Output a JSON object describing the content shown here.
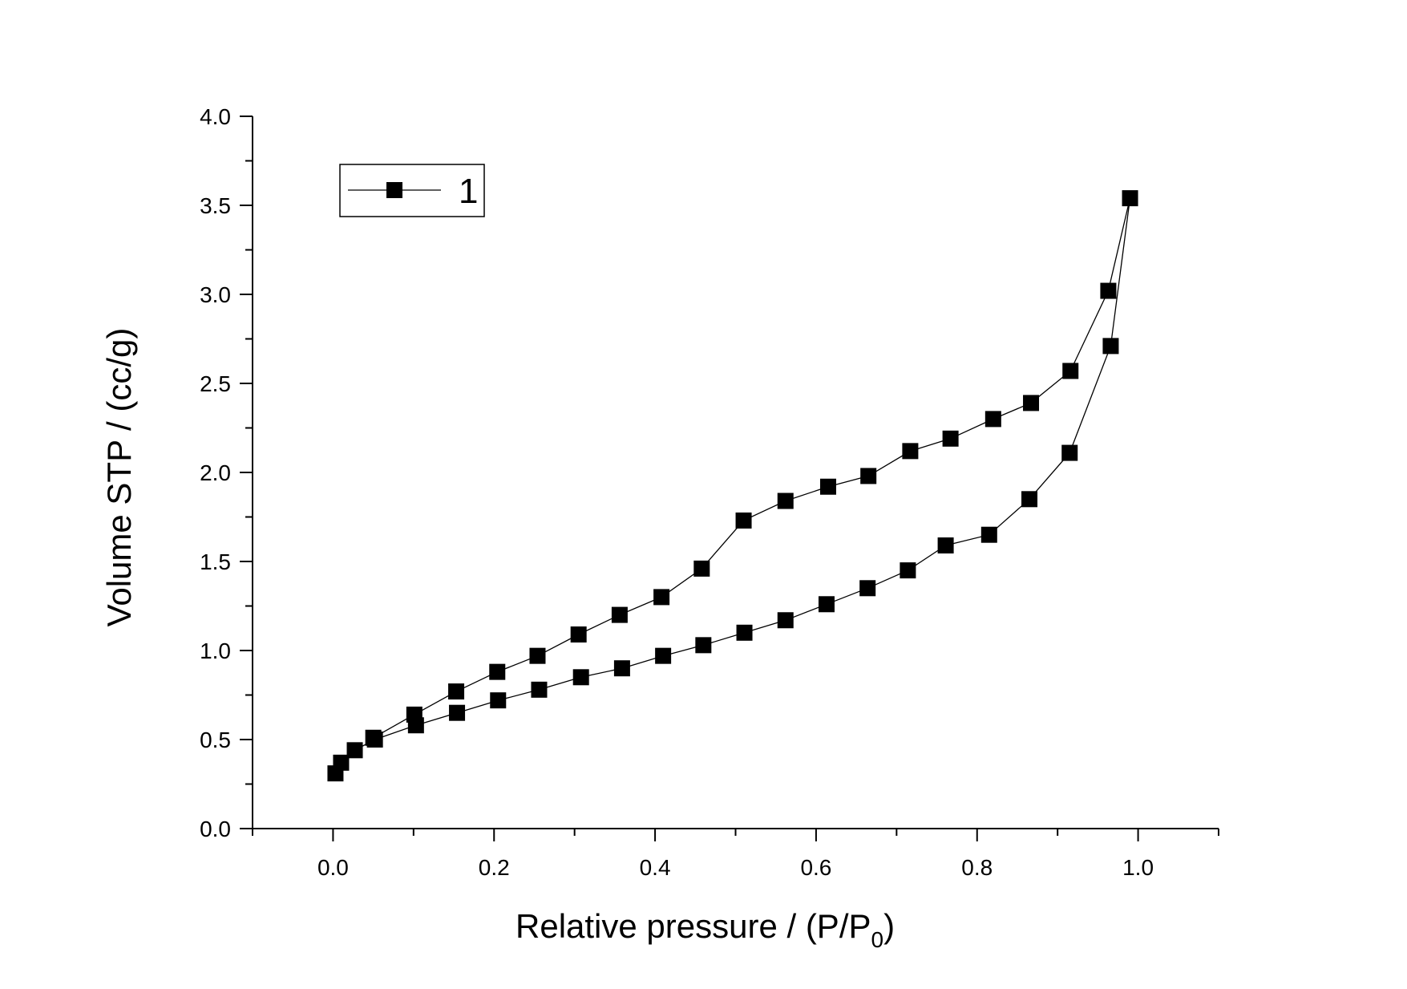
{
  "chart_data": {
    "type": "line",
    "title": "",
    "xlabel": "Relative pressure / (P/P",
    "xlabel_sub": "0",
    "xlabel_end": ")",
    "ylabel": "Volume STP / (cc/g)",
    "xlim": [
      -0.1,
      1.1
    ],
    "ylim": [
      0.0,
      4.0
    ],
    "x_ticks": [
      "0.0",
      "0.2",
      "0.4",
      "0.6",
      "0.8",
      "1.0"
    ],
    "y_ticks": [
      "0.0",
      "0.5",
      "1.0",
      "1.5",
      "2.0",
      "2.5",
      "3.0",
      "3.5",
      "4.0"
    ],
    "grid": false,
    "legend_position": "top-left",
    "marker": "square",
    "line_color": "#000000",
    "series": [
      {
        "name": "1",
        "points": [
          [
            0.003,
            0.31
          ],
          [
            0.01,
            0.37
          ],
          [
            0.027,
            0.44
          ],
          [
            0.052,
            0.5
          ],
          [
            0.103,
            0.58
          ],
          [
            0.154,
            0.65
          ],
          [
            0.205,
            0.72
          ],
          [
            0.256,
            0.78
          ],
          [
            0.308,
            0.85
          ],
          [
            0.359,
            0.9
          ],
          [
            0.41,
            0.97
          ],
          [
            0.46,
            1.03
          ],
          [
            0.511,
            1.1
          ],
          [
            0.562,
            1.17
          ],
          [
            0.613,
            1.26
          ],
          [
            0.664,
            1.35
          ],
          [
            0.714,
            1.45
          ],
          [
            0.761,
            1.59
          ],
          [
            0.815,
            1.65
          ],
          [
            0.865,
            1.85
          ],
          [
            0.915,
            2.11
          ],
          [
            0.966,
            2.71
          ],
          [
            0.99,
            3.54
          ],
          [
            0.963,
            3.02
          ],
          [
            0.916,
            2.57
          ],
          [
            0.867,
            2.39
          ],
          [
            0.82,
            2.3
          ],
          [
            0.767,
            2.19
          ],
          [
            0.717,
            2.12
          ],
          [
            0.665,
            1.98
          ],
          [
            0.615,
            1.92
          ],
          [
            0.562,
            1.84
          ],
          [
            0.51,
            1.73
          ],
          [
            0.458,
            1.46
          ],
          [
            0.408,
            1.3
          ],
          [
            0.356,
            1.2
          ],
          [
            0.305,
            1.09
          ],
          [
            0.254,
            0.97
          ],
          [
            0.204,
            0.88
          ],
          [
            0.153,
            0.77
          ],
          [
            0.101,
            0.64
          ],
          [
            0.05,
            0.51
          ]
        ]
      }
    ]
  }
}
